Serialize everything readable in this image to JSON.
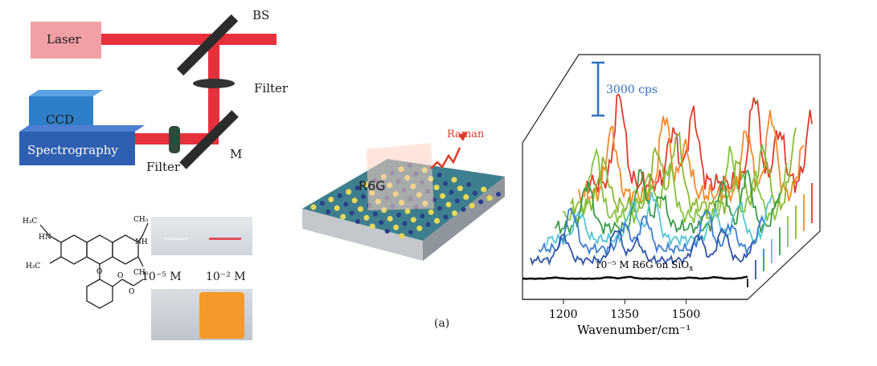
{
  "setup": {
    "laser": "Laser",
    "bs": "BS",
    "filter_top": "Filter",
    "ccd": "CCD",
    "spectrography": "Spectrography",
    "filter_bottom": "Filter",
    "mirror": "M"
  },
  "molecule": {
    "groups": [
      "H₃C",
      "HN",
      "NH",
      "CH₃",
      "H₃C",
      "CH₃",
      "O",
      "O",
      "O"
    ]
  },
  "vials": {
    "low_conc": "10⁻⁵ M",
    "high_conc": "10⁻² M"
  },
  "substrate": {
    "molecule_label": "R6G",
    "signal_label": "Raman"
  },
  "panel_label": "(a)",
  "colors": {
    "laser_body": "#f2a0a6",
    "beam": "#e8303c",
    "ccd": "#2f7fc8",
    "spectrograph": "#2e5fb0",
    "scale_bar": "#2f6fc0"
  },
  "chart_data": {
    "type": "line",
    "style": "3d-waterfall",
    "xlabel": "Wavenumber/cm⁻¹",
    "xticks": [
      1200,
      1350,
      1500
    ],
    "xlim": [
      1100,
      1650
    ],
    "scale_bar": "3000 cps",
    "annotation": "10⁻⁵ M R6G on SiO",
    "annotation_sub": "x",
    "peaks_cm": [
      1180,
      1310,
      1360,
      1510,
      1570,
      1650
    ],
    "series": [
      {
        "color": "#111111",
        "intensity": 0.02
      },
      {
        "color": "#2f55a8",
        "intensity": 0.35
      },
      {
        "color": "#3d7fd0",
        "intensity": 0.45
      },
      {
        "color": "#55c4d6",
        "intensity": 0.5
      },
      {
        "color": "#3a9a48",
        "intensity": 0.62
      },
      {
        "color": "#86c43e",
        "intensity": 0.72
      },
      {
        "color": "#8cb833",
        "intensity": 0.8
      },
      {
        "color": "#f08a2c",
        "intensity": 0.9
      },
      {
        "color": "#e23a2a",
        "intensity": 1.0
      }
    ]
  }
}
